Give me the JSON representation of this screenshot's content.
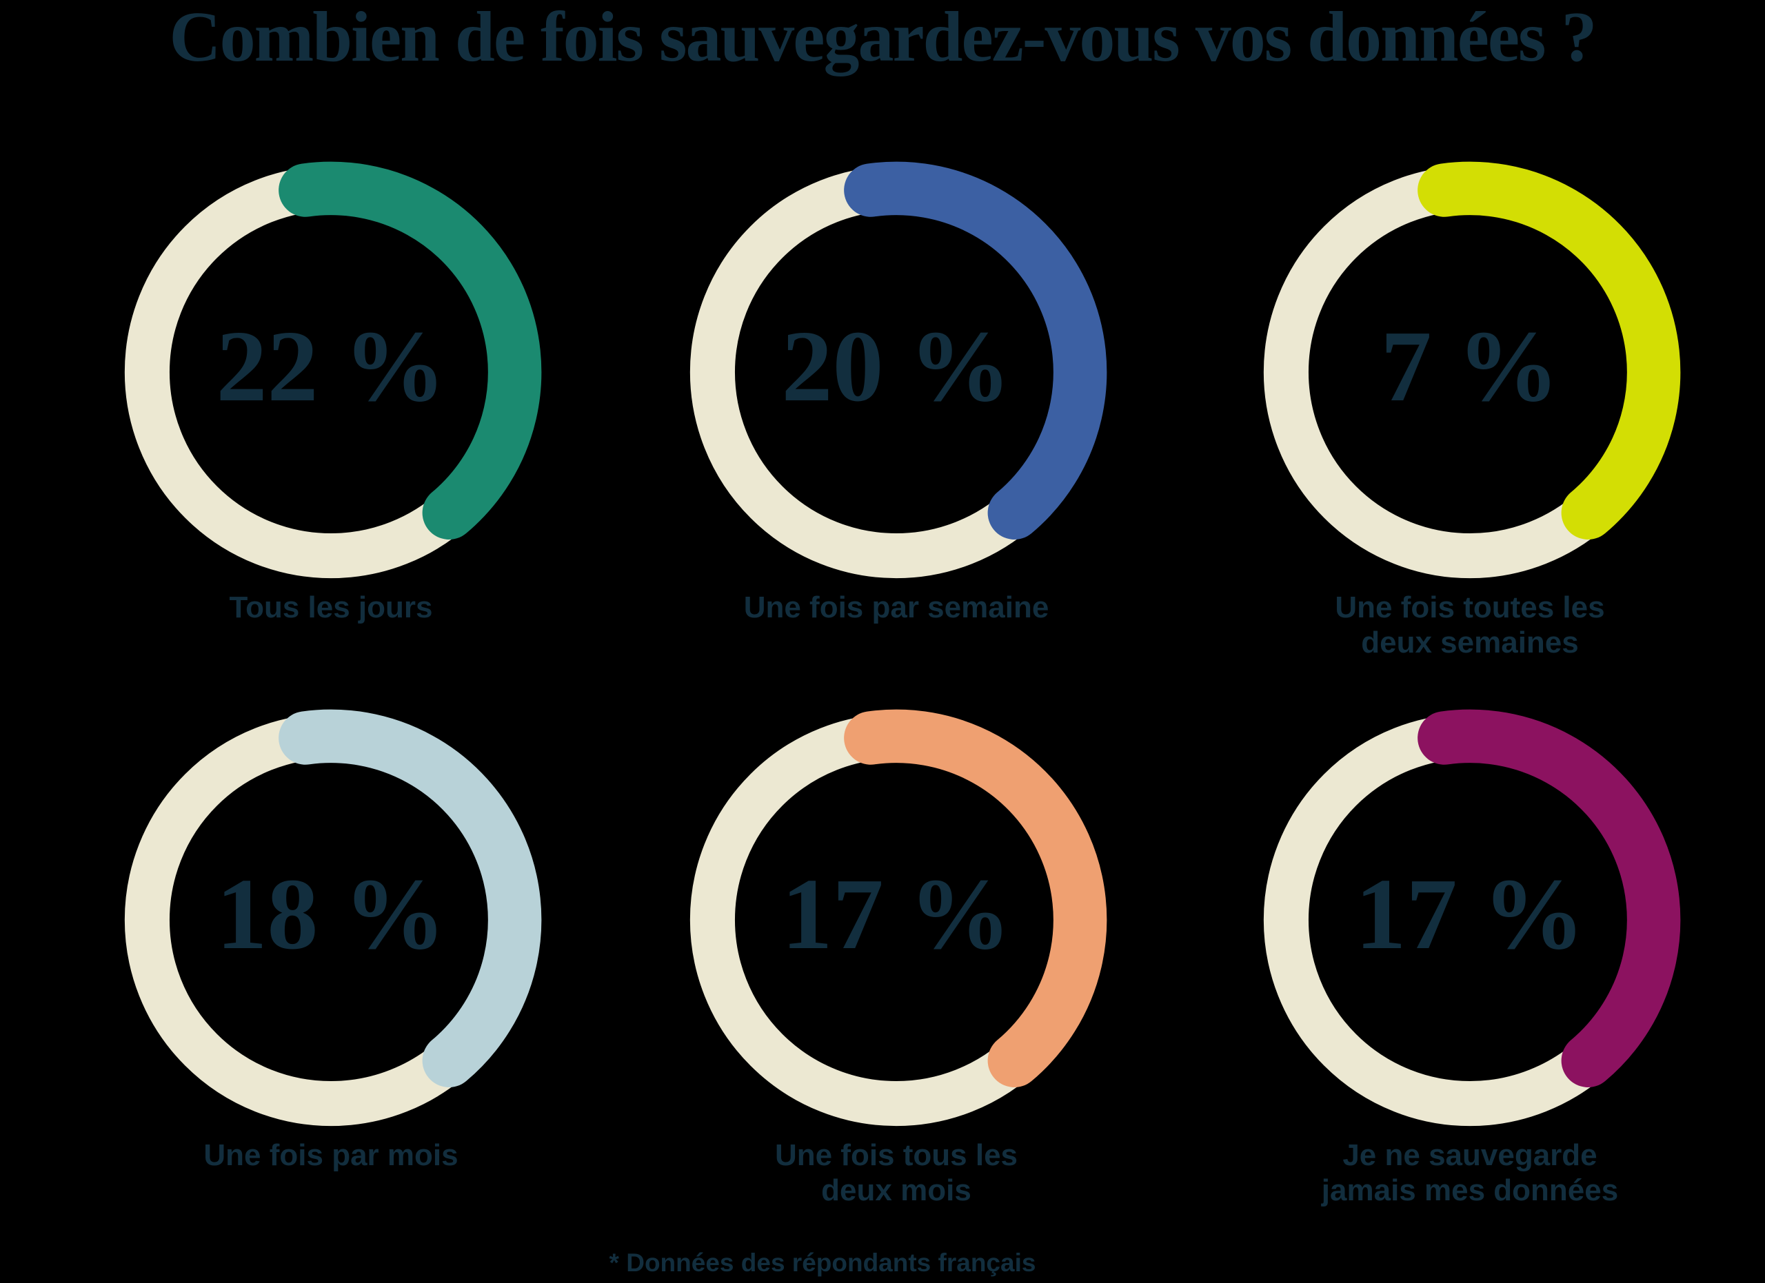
{
  "title": "Combien de fois sauvegardez-vous vos données ?",
  "footnote": "* Données des répondants français",
  "colors": {
    "background": "#000000",
    "text": "#122e3e",
    "ring_base": "#ece8d2"
  },
  "chart_data": {
    "type": "donut-grid",
    "unit": "%",
    "legend_position": "below-each-donut",
    "items": [
      {
        "label": "Tous les jours",
        "value": 22,
        "value_label": "22 %",
        "arc_color": "#1b8a70"
      },
      {
        "label": "Une fois par semaine",
        "value": 20,
        "value_label": "20 %",
        "arc_color": "#3c60a3"
      },
      {
        "label": "Une fois toutes les\ndeux semaines",
        "value": 7,
        "value_label": "7 %",
        "arc_color": "#d3de04"
      },
      {
        "label": "Une fois par mois",
        "value": 18,
        "value_label": "18 %",
        "arc_color": "#b8d2d8"
      },
      {
        "label": "Une fois tous les\ndeux mois",
        "value": 17,
        "value_label": "17 %",
        "arc_color": "#efa071"
      },
      {
        "label": "Je ne sauvegarde\njamais mes données",
        "value": 17,
        "value_label": "17 %",
        "arc_color": "#8c1260"
      }
    ]
  }
}
